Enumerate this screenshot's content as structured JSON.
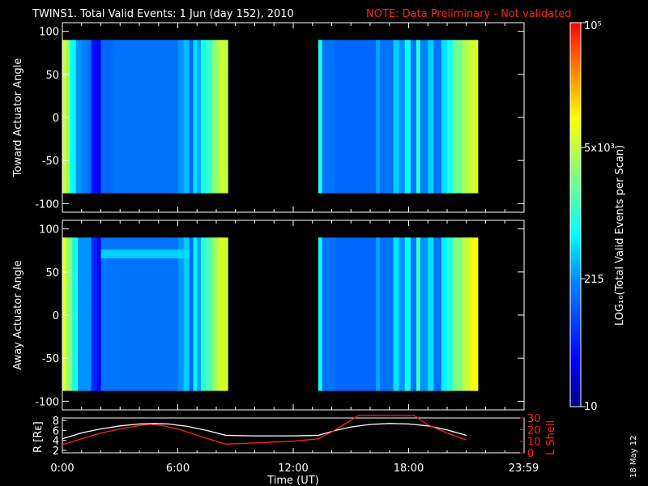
{
  "header": {
    "title": "TWINS1. Total Valid Events:  1 Jun (day 152), 2010",
    "note": "NOTE: Data Preliminary - Not validated"
  },
  "side_stamp": "18 May 12",
  "colors": {
    "background": "#000000",
    "axes": "#ffffff",
    "note": "#ff2020",
    "lshell": "#ff2020",
    "radius": "#ffffff"
  },
  "colorbar": {
    "label": "LOG₁₀(Total Valid Events per Scan)",
    "ticks": [
      "10",
      "215",
      "5x10³",
      "10⁵"
    ],
    "tick_values": [
      10,
      215,
      5000,
      100000
    ],
    "scale": "log",
    "colormap": "rainbow (dark blue → red)"
  },
  "chart_data": [
    {
      "type": "heatmap",
      "panel": "toward",
      "ylabel": "Toward Actuator Angle",
      "ylim": [
        -110,
        110
      ],
      "yticks": [
        "100",
        "50",
        "0",
        "-50",
        "-100"
      ],
      "ytick_values": [
        100,
        50,
        0,
        -50,
        -100
      ],
      "xlim_hours": [
        0,
        24
      ],
      "angle_range": [
        -88,
        90
      ],
      "data_intervals_hours": [
        [
          0.0,
          8.6
        ],
        [
          13.3,
          21.6
        ]
      ],
      "column_levels": [
        [
          0.0,
          0.2,
          0.7
        ],
        [
          0.2,
          0.4,
          0.62
        ],
        [
          0.4,
          0.7,
          0.45
        ],
        [
          0.7,
          1.0,
          0.34
        ],
        [
          1.0,
          1.3,
          0.32
        ],
        [
          1.3,
          1.5,
          0.3
        ],
        [
          1.5,
          1.8,
          0.14
        ],
        [
          1.8,
          2.0,
          0.1
        ],
        [
          2.0,
          2.6,
          0.28
        ],
        [
          2.6,
          4.0,
          0.3
        ],
        [
          4.0,
          6.0,
          0.3
        ],
        [
          6.0,
          6.3,
          0.34
        ],
        [
          6.3,
          6.6,
          0.38
        ],
        [
          6.6,
          6.8,
          0.28
        ],
        [
          6.8,
          7.0,
          0.42
        ],
        [
          7.0,
          7.2,
          0.36
        ],
        [
          7.2,
          7.5,
          0.48
        ],
        [
          7.5,
          7.8,
          0.52
        ],
        [
          7.8,
          8.1,
          0.62
        ],
        [
          8.1,
          8.6,
          0.68
        ],
        [
          13.3,
          13.5,
          0.48
        ],
        [
          13.5,
          14.2,
          0.3
        ],
        [
          14.2,
          16.3,
          0.28
        ],
        [
          16.3,
          16.5,
          0.36
        ],
        [
          16.5,
          17.2,
          0.3
        ],
        [
          17.2,
          17.5,
          0.4
        ],
        [
          17.5,
          17.8,
          0.34
        ],
        [
          17.8,
          18.1,
          0.46
        ],
        [
          18.1,
          18.4,
          0.3
        ],
        [
          18.4,
          18.6,
          0.5
        ],
        [
          18.6,
          19.0,
          0.32
        ],
        [
          19.0,
          19.3,
          0.4
        ],
        [
          19.3,
          19.7,
          0.3
        ],
        [
          19.7,
          20.0,
          0.42
        ],
        [
          20.0,
          20.3,
          0.48
        ],
        [
          20.3,
          20.8,
          0.58
        ],
        [
          20.8,
          21.2,
          0.66
        ],
        [
          21.2,
          21.6,
          0.7
        ]
      ]
    },
    {
      "type": "heatmap",
      "panel": "away",
      "ylabel": "Away Actuator Angle",
      "ylim": [
        -110,
        110
      ],
      "yticks": [
        "100",
        "50",
        "0",
        "-50",
        "-100"
      ],
      "ytick_values": [
        100,
        50,
        0,
        -50,
        -100
      ],
      "xlim_hours": [
        0,
        24
      ],
      "angle_range": [
        -88,
        90
      ],
      "data_intervals_hours": [
        [
          0.0,
          8.6
        ],
        [
          13.3,
          21.6
        ]
      ],
      "enhanced_band_angle": [
        66,
        76
      ],
      "column_levels": [
        [
          0.0,
          0.2,
          0.72
        ],
        [
          0.2,
          0.5,
          0.62
        ],
        [
          0.5,
          0.8,
          0.48
        ],
        [
          0.8,
          1.5,
          0.34
        ],
        [
          1.5,
          1.8,
          0.18
        ],
        [
          1.8,
          2.0,
          0.12
        ],
        [
          2.0,
          2.6,
          0.3
        ],
        [
          2.6,
          4.0,
          0.3
        ],
        [
          4.0,
          6.0,
          0.3
        ],
        [
          6.0,
          6.3,
          0.34
        ],
        [
          6.3,
          6.6,
          0.4
        ],
        [
          6.6,
          6.8,
          0.28
        ],
        [
          6.8,
          7.0,
          0.44
        ],
        [
          7.0,
          7.2,
          0.36
        ],
        [
          7.2,
          7.5,
          0.5
        ],
        [
          7.5,
          7.8,
          0.54
        ],
        [
          7.8,
          8.1,
          0.64
        ],
        [
          8.1,
          8.6,
          0.7
        ],
        [
          13.3,
          13.5,
          0.46
        ],
        [
          13.5,
          14.2,
          0.3
        ],
        [
          14.2,
          16.3,
          0.28
        ],
        [
          16.3,
          16.5,
          0.36
        ],
        [
          16.5,
          17.2,
          0.3
        ],
        [
          17.2,
          17.5,
          0.42
        ],
        [
          17.5,
          17.8,
          0.34
        ],
        [
          17.8,
          18.1,
          0.46
        ],
        [
          18.1,
          18.4,
          0.3
        ],
        [
          18.4,
          18.6,
          0.52
        ],
        [
          18.6,
          19.0,
          0.34
        ],
        [
          19.0,
          19.3,
          0.42
        ],
        [
          19.3,
          19.7,
          0.3
        ],
        [
          19.7,
          20.0,
          0.44
        ],
        [
          20.0,
          20.3,
          0.5
        ],
        [
          20.3,
          20.8,
          0.6
        ],
        [
          20.8,
          21.2,
          0.68
        ],
        [
          21.2,
          21.6,
          0.74
        ]
      ]
    },
    {
      "type": "line",
      "panel": "orbit",
      "xlabel": "Time (UT)",
      "xticks": [
        "0:00",
        "6:00",
        "12:00",
        "18:00",
        "23:59"
      ],
      "xtick_hours": [
        0,
        6,
        12,
        18,
        23.98
      ],
      "ylabel_left": "R [Rᴇ]",
      "yticks_left": [
        "8",
        "6",
        "4",
        "2"
      ],
      "ytick_values_left": [
        8,
        6,
        4,
        2
      ],
      "ylim_left": [
        1.5,
        8.5
      ],
      "ylabel_right": "L Shell",
      "yticks_right": [
        "30",
        "20",
        "10",
        "0"
      ],
      "ytick_values_right": [
        30,
        20,
        10,
        0
      ],
      "ylim_right": [
        0,
        30
      ],
      "series": [
        {
          "key": "radius",
          "x": [
            0.0,
            1.0,
            2.0,
            3.0,
            4.0,
            4.8,
            5.5,
            6.5,
            7.5,
            8.5,
            10.0,
            12.0,
            13.3,
            14.2,
            15.0,
            16.0,
            17.0,
            18.0,
            19.0,
            20.0,
            21.0
          ],
          "y": [
            4.3,
            5.5,
            6.3,
            6.9,
            7.3,
            7.4,
            7.3,
            6.8,
            6.0,
            5.0,
            4.9,
            4.9,
            5.0,
            6.0,
            6.7,
            7.2,
            7.4,
            7.3,
            6.9,
            6.1,
            5.0
          ]
        },
        {
          "key": "lshell",
          "x": [
            0.0,
            1.0,
            2.0,
            3.0,
            4.0,
            4.6,
            5.2,
            6.2,
            7.2,
            8.5,
            10.0,
            12.0,
            13.3,
            14.0,
            14.7,
            15.4,
            18.3,
            19.0,
            20.0,
            21.0
          ],
          "y": [
            7.0,
            12.0,
            17.0,
            20.5,
            23.5,
            24.5,
            23.5,
            19.5,
            14.0,
            7.5,
            8.5,
            10.0,
            12.0,
            18.0,
            25.0,
            33.0,
            33.0,
            24.0,
            17.0,
            11.0
          ]
        }
      ]
    }
  ]
}
